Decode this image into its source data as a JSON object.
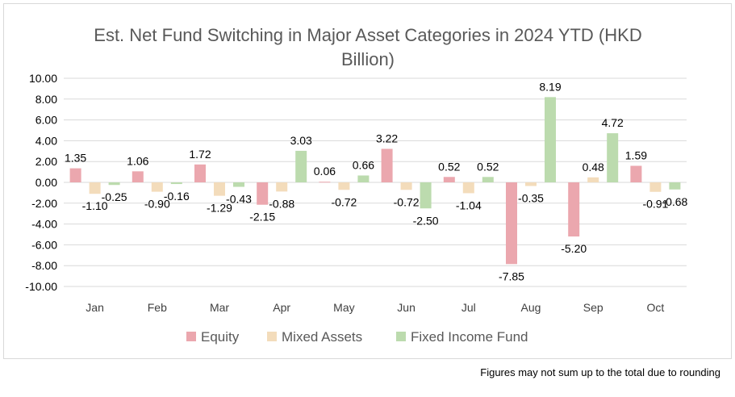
{
  "chart_data": {
    "type": "bar",
    "title": "Est. Net Fund Switching in Major Asset Categories in 2024 YTD (HKD Billion)",
    "title_lines": [
      "Est. Net Fund Switching in Major Asset Categories in 2024 YTD (HKD",
      "Billion)"
    ],
    "categories": [
      "Jan",
      "Feb",
      "Mar",
      "Apr",
      "May",
      "Jun",
      "Jul",
      "Aug",
      "Sep",
      "Oct"
    ],
    "series": [
      {
        "name": "Equity",
        "color": "#eba7ae",
        "values": [
          1.35,
          1.06,
          1.72,
          -2.15,
          0.06,
          3.22,
          0.52,
          -7.85,
          -5.2,
          1.59
        ]
      },
      {
        "name": "Mixed Assets",
        "color": "#f3dcbb",
        "values": [
          -1.1,
          -0.9,
          -1.29,
          -0.88,
          -0.72,
          -0.72,
          -1.04,
          -0.35,
          0.48,
          -0.91
        ]
      },
      {
        "name": "Fixed Income Fund",
        "color": "#bcdbae",
        "values": [
          -0.25,
          -0.16,
          -0.43,
          3.03,
          0.66,
          -2.5,
          0.52,
          8.19,
          4.72,
          -0.68
        ]
      }
    ],
    "ylim": [
      -10,
      10
    ],
    "yticks": [
      "10.00",
      "8.00",
      "6.00",
      "4.00",
      "2.00",
      "0.00",
      "-2.00",
      "-4.00",
      "-6.00",
      "-8.00",
      "-10.00"
    ],
    "grid": true,
    "legend_position": "bottom",
    "xlabel": "",
    "ylabel": ""
  },
  "footnote": "Figures may not sum up to the total due to rounding"
}
